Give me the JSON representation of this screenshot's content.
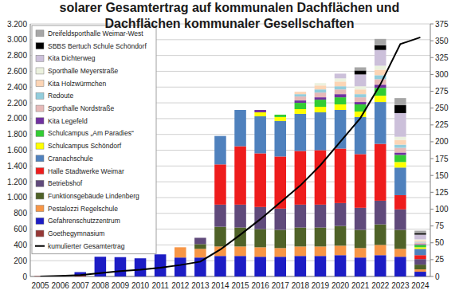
{
  "chart_data": {
    "type": "bar",
    "stacked": true,
    "grid": true,
    "legend": "top-left",
    "title": "solarer Gesamtertrag auf kommunalen Dachflächen und Dachflächen kommunaler Gesellschaften",
    "categories": [
      "2005",
      "2006",
      "2007",
      "2008",
      "2009",
      "2010",
      "2011",
      "2012",
      "2013",
      "2014",
      "2015",
      "2016",
      "2017",
      "2018",
      "2019",
      "2020",
      "2021",
      "2022",
      "2023",
      "2024"
    ],
    "ylim": [
      0,
      3200
    ],
    "yticks": [
      0,
      200,
      400,
      600,
      800,
      {
        "value": 1000,
        "label": "1.000"
      },
      {
        "value": 1200,
        "label": "1.200"
      },
      {
        "value": 1400,
        "label": "1.400"
      },
      {
        "value": 1600,
        "label": "1.600"
      },
      {
        "value": 1800,
        "label": "1.800"
      },
      {
        "value": 2000,
        "label": "2.000"
      },
      {
        "value": 2200,
        "label": "2.200"
      },
      {
        "value": 2400,
        "label": "2.400"
      },
      {
        "value": 2600,
        "label": "2.600"
      },
      {
        "value": 2800,
        "label": "2.800"
      },
      {
        "value": 3000,
        "label": "3.000"
      },
      {
        "value": 3200,
        "label": "3.200"
      }
    ],
    "y2lim": [
      0,
      375
    ],
    "y2ticks": [
      0,
      25,
      50,
      75,
      100,
      125,
      150,
      175,
      200,
      225,
      250,
      275,
      300,
      325,
      350,
      375
    ],
    "series": [
      {
        "name": "Goethegymnasium",
        "color": "#953735",
        "values": [
          5,
          10,
          10,
          0,
          0,
          0,
          0,
          0,
          0,
          0,
          0,
          0,
          0,
          0,
          0,
          0,
          0,
          0,
          0,
          0
        ]
      },
      {
        "name": "Gefahrenschutzzentrum",
        "color": "#1c1cc4",
        "values": [
          0,
          0,
          45,
          250,
          245,
          230,
          280,
          240,
          240,
          260,
          260,
          250,
          250,
          260,
          260,
          270,
          240,
          270,
          250,
          60
        ]
      },
      {
        "name": "Pestalozzi Regelschule",
        "color": "#f79646",
        "values": [
          0,
          0,
          0,
          0,
          0,
          0,
          0,
          130,
          110,
          120,
          120,
          120,
          110,
          120,
          120,
          120,
          120,
          130,
          100,
          30
        ]
      },
      {
        "name": "Funktionsgebäude Lindenberg",
        "color": "#4f6228",
        "values": [
          0,
          0,
          0,
          0,
          0,
          0,
          0,
          0,
          60,
          250,
          240,
          230,
          230,
          240,
          240,
          250,
          230,
          260,
          240,
          60
        ]
      },
      {
        "name": "Betriebshof",
        "color": "#604a7b",
        "values": [
          0,
          0,
          0,
          0,
          0,
          0,
          0,
          0,
          80,
          280,
          290,
          280,
          270,
          290,
          290,
          290,
          280,
          300,
          260,
          70
        ]
      },
      {
        "name": "Halle Stadtwerke Weimar",
        "color": "#ee1c1c",
        "values": [
          0,
          0,
          0,
          0,
          0,
          0,
          0,
          0,
          0,
          510,
          740,
          680,
          660,
          680,
          690,
          690,
          680,
          720,
          180,
          50
        ]
      },
      {
        "name": "Cranachschule",
        "color": "#4f81bd",
        "values": [
          0,
          0,
          0,
          0,
          0,
          0,
          0,
          0,
          0,
          360,
          460,
          470,
          450,
          470,
          480,
          490,
          470,
          530,
          350,
          80
        ]
      },
      {
        "name": "Schulcampus Schöndorf",
        "color": "#ffff00",
        "values": [
          0,
          0,
          0,
          0,
          0,
          0,
          0,
          0,
          0,
          0,
          0,
          50,
          50,
          60,
          70,
          70,
          70,
          80,
          70,
          20
        ]
      },
      {
        "name": "Schulcampus „Am Paradies“",
        "color": "#33cc33",
        "values": [
          0,
          0,
          0,
          0,
          0,
          0,
          0,
          0,
          0,
          0,
          0,
          0,
          30,
          80,
          90,
          90,
          90,
          100,
          90,
          30
        ]
      },
      {
        "name": "Kita Legefeld",
        "color": "#7030a0",
        "values": [
          0,
          0,
          0,
          0,
          0,
          0,
          0,
          0,
          0,
          0,
          0,
          30,
          0,
          30,
          30,
          40,
          30,
          40,
          30,
          10
        ]
      },
      {
        "name": "Sporthalle Nordstraße",
        "color": "#e6b9b8",
        "values": [
          0,
          0,
          0,
          0,
          0,
          0,
          0,
          0,
          0,
          0,
          0,
          0,
          0,
          50,
          60,
          60,
          60,
          70,
          60,
          20
        ]
      },
      {
        "name": "Redoute",
        "color": "#92cddc",
        "values": [
          0,
          0,
          0,
          0,
          0,
          0,
          0,
          0,
          0,
          0,
          0,
          0,
          0,
          30,
          40,
          40,
          40,
          50,
          40,
          10
        ]
      },
      {
        "name": "Kita Holzwürmchen",
        "color": "#fcd5b5",
        "values": [
          0,
          0,
          0,
          0,
          0,
          0,
          0,
          0,
          0,
          0,
          0,
          0,
          0,
          30,
          50,
          60,
          60,
          70,
          60,
          20
        ]
      },
      {
        "name": "Sporthalle Meyerstraße",
        "color": "#ebf1de",
        "values": [
          0,
          0,
          0,
          0,
          0,
          0,
          0,
          0,
          0,
          0,
          0,
          0,
          0,
          0,
          30,
          40,
          40,
          50,
          40,
          10
        ]
      },
      {
        "name": "Kita Dichterweg",
        "color": "#ccc0da",
        "values": [
          0,
          0,
          0,
          0,
          0,
          0,
          0,
          0,
          0,
          0,
          0,
          0,
          0,
          0,
          0,
          60,
          150,
          200,
          300,
          60
        ]
      },
      {
        "name": "SBBS Bertuch Schule Schöndorf",
        "color": "#000000",
        "values": [
          0,
          0,
          0,
          0,
          0,
          0,
          0,
          0,
          0,
          0,
          0,
          0,
          0,
          0,
          0,
          0,
          50,
          60,
          100,
          20
        ]
      },
      {
        "name": "Dreifeldsporthalle Weimar-West",
        "color": "#a6a6a6",
        "values": [
          0,
          0,
          0,
          0,
          0,
          0,
          0,
          0,
          0,
          0,
          0,
          0,
          0,
          0,
          0,
          0,
          40,
          80,
          90,
          30
        ]
      },
      {
        "name": "kumulierter Gesamtertrag",
        "type": "line",
        "axis": "y2",
        "color": "#000000",
        "values": [
          0,
          1,
          2,
          5,
          8,
          10,
          13,
          17,
          22,
          40,
          62,
          85,
          110,
          135,
          165,
          200,
          235,
          285,
          345,
          355
        ]
      }
    ]
  }
}
